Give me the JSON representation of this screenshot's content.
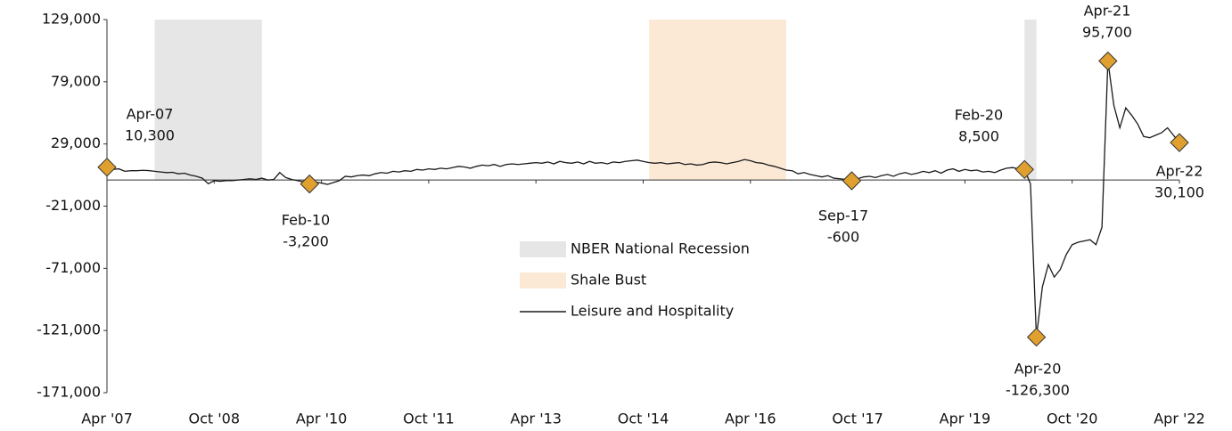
{
  "chart_data": {
    "type": "line",
    "x": [
      "2007-04",
      "2007-05",
      "2007-06",
      "2007-07",
      "2007-08",
      "2007-09",
      "2007-10",
      "2007-11",
      "2007-12",
      "2008-01",
      "2008-02",
      "2008-03",
      "2008-04",
      "2008-05",
      "2008-06",
      "2008-07",
      "2008-08",
      "2008-09",
      "2008-10",
      "2008-11",
      "2008-12",
      "2009-01",
      "2009-02",
      "2009-03",
      "2009-04",
      "2009-05",
      "2009-06",
      "2009-07",
      "2009-08",
      "2009-09",
      "2009-10",
      "2009-11",
      "2009-12",
      "2010-01",
      "2010-02",
      "2010-03",
      "2010-04",
      "2010-05",
      "2010-06",
      "2010-07",
      "2010-08",
      "2010-09",
      "2010-10",
      "2010-11",
      "2010-12",
      "2011-01",
      "2011-02",
      "2011-03",
      "2011-04",
      "2011-05",
      "2011-06",
      "2011-07",
      "2011-08",
      "2011-09",
      "2011-10",
      "2011-11",
      "2011-12",
      "2012-01",
      "2012-02",
      "2012-03",
      "2012-04",
      "2012-05",
      "2012-06",
      "2012-07",
      "2012-08",
      "2012-09",
      "2012-10",
      "2012-11",
      "2012-12",
      "2013-01",
      "2013-02",
      "2013-03",
      "2013-04",
      "2013-05",
      "2013-06",
      "2013-07",
      "2013-08",
      "2013-09",
      "2013-10",
      "2013-11",
      "2013-12",
      "2014-01",
      "2014-02",
      "2014-03",
      "2014-04",
      "2014-05",
      "2014-06",
      "2014-07",
      "2014-08",
      "2014-09",
      "2014-10",
      "2014-11",
      "2014-12",
      "2015-01",
      "2015-02",
      "2015-03",
      "2015-04",
      "2015-05",
      "2015-06",
      "2015-07",
      "2015-08",
      "2015-09",
      "2015-10",
      "2015-11",
      "2015-12",
      "2016-01",
      "2016-02",
      "2016-03",
      "2016-04",
      "2016-05",
      "2016-06",
      "2016-07",
      "2016-08",
      "2016-09",
      "2016-10",
      "2016-11",
      "2016-12",
      "2017-01",
      "2017-02",
      "2017-03",
      "2017-04",
      "2017-05",
      "2017-06",
      "2017-07",
      "2017-08",
      "2017-09",
      "2017-10",
      "2017-11",
      "2017-12",
      "2018-01",
      "2018-02",
      "2018-03",
      "2018-04",
      "2018-05",
      "2018-06",
      "2018-07",
      "2018-08",
      "2018-09",
      "2018-10",
      "2018-11",
      "2018-12",
      "2019-01",
      "2019-02",
      "2019-03",
      "2019-04",
      "2019-05",
      "2019-06",
      "2019-07",
      "2019-08",
      "2019-09",
      "2019-10",
      "2019-11",
      "2019-12",
      "2020-01",
      "2020-02",
      "2020-03",
      "2020-04",
      "2020-05",
      "2020-06",
      "2020-07",
      "2020-08",
      "2020-09",
      "2020-10",
      "2020-11",
      "2020-12",
      "2021-01",
      "2021-02",
      "2021-03",
      "2021-04",
      "2021-05",
      "2021-06",
      "2021-07",
      "2021-08",
      "2021-09",
      "2021-10",
      "2021-11",
      "2021-12",
      "2022-01",
      "2022-02",
      "2022-03",
      "2022-04"
    ],
    "series": [
      {
        "name": "Leisure and Hospitality",
        "color": "#1a1a1a",
        "values": [
          10300,
          8500,
          9000,
          7000,
          7500,
          7500,
          7800,
          7600,
          7000,
          6500,
          6000,
          6200,
          5000,
          5500,
          4000,
          3000,
          1500,
          -3000,
          -500,
          -1000,
          -500,
          -500,
          0,
          500,
          1000,
          500,
          1500,
          0,
          500,
          6000,
          2000,
          500,
          -500,
          -1500,
          -3200,
          -1500,
          -2500,
          -3500,
          -2000,
          -500,
          3000,
          2500,
          3500,
          4000,
          3500,
          5000,
          6000,
          5500,
          7000,
          6500,
          7500,
          7000,
          8500,
          8000,
          9000,
          8500,
          9500,
          9000,
          10000,
          11000,
          10500,
          9500,
          11000,
          12000,
          11500,
          12500,
          11000,
          12500,
          13000,
          12500,
          13000,
          13500,
          14000,
          13500,
          14500,
          13000,
          15000,
          14000,
          13500,
          14500,
          13000,
          15000,
          13500,
          14000,
          13000,
          14500,
          14000,
          15000,
          15500,
          16000,
          15000,
          14000,
          13500,
          14000,
          13000,
          13500,
          14000,
          12500,
          13000,
          12000,
          12500,
          14000,
          14500,
          14000,
          13000,
          14000,
          15000,
          16500,
          15500,
          14000,
          13500,
          12000,
          11000,
          9500,
          8000,
          7500,
          5000,
          6000,
          4500,
          3500,
          2500,
          3500,
          1500,
          1000,
          500,
          -600,
          1000,
          2500,
          3000,
          2000,
          3500,
          4500,
          3000,
          5000,
          6000,
          4500,
          5500,
          7000,
          6000,
          7500,
          5500,
          8000,
          9000,
          7000,
          8500,
          7500,
          8000,
          6500,
          7000,
          6000,
          8000,
          9500,
          10000,
          9000,
          8500,
          -3000,
          -126300,
          -86000,
          -68000,
          -78000,
          -72000,
          -60000,
          -52000,
          -50000,
          -49000,
          -48000,
          -52000,
          -38000,
          95700,
          60000,
          42000,
          58000,
          52000,
          45000,
          35000,
          34000,
          36000,
          38000,
          42000,
          36000,
          30100
        ]
      }
    ],
    "shaded": [
      {
        "name": "NBER National Recession",
        "color": "#e6e6e6",
        "spans": [
          [
            "2007-12",
            "2009-06"
          ],
          [
            "2020-02",
            "2020-04"
          ]
        ]
      },
      {
        "name": "Shale Bust",
        "color": "#fbe9d6",
        "spans": [
          [
            "2014-11",
            "2016-10"
          ]
        ]
      }
    ],
    "annotations": [
      {
        "x": "2007-04",
        "text": "Apr-07",
        "value": 10300,
        "value_label": "10,300"
      },
      {
        "x": "2010-02",
        "text": "Feb-10",
        "value": -3200,
        "value_label": "-3,200"
      },
      {
        "x": "2017-09",
        "text": "Sep-17",
        "value": -600,
        "value_label": "-600"
      },
      {
        "x": "2020-02",
        "text": "Feb-20",
        "value": 8500,
        "value_label": "8,500"
      },
      {
        "x": "2020-04",
        "text": "Apr-20",
        "value": -126300,
        "value_label": "-126,300"
      },
      {
        "x": "2021-04",
        "text": "Apr-21",
        "value": 95700,
        "value_label": "95,700"
      },
      {
        "x": "2022-04",
        "text": "Apr-22",
        "value": 30100,
        "value_label": "30,100"
      }
    ],
    "marker_color": "#e0a030",
    "ylim": [
      -171000,
      129000
    ],
    "yticks": [
      {
        "value": 129000,
        "label": "129,000"
      },
      {
        "value": 79000,
        "label": "79,000"
      },
      {
        "value": 29000,
        "label": "29,000"
      },
      {
        "value": -21000,
        "label": "-21,000"
      },
      {
        "value": -71000,
        "label": "-71,000"
      },
      {
        "value": -121000,
        "label": "-121,000"
      },
      {
        "value": -171000,
        "label": "-171,000"
      }
    ],
    "xticks": [
      {
        "value": "2007-04",
        "label": "Apr '07"
      },
      {
        "value": "2008-10",
        "label": "Oct '08"
      },
      {
        "value": "2010-04",
        "label": "Apr '10"
      },
      {
        "value": "2011-10",
        "label": "Oct '11"
      },
      {
        "value": "2013-04",
        "label": "Apr '13"
      },
      {
        "value": "2014-10",
        "label": "Oct '14"
      },
      {
        "value": "2016-04",
        "label": "Apr '16"
      },
      {
        "value": "2017-10",
        "label": "Oct '17"
      },
      {
        "value": "2019-04",
        "label": "Apr '19"
      },
      {
        "value": "2020-10",
        "label": "Oct '20"
      },
      {
        "value": "2022-04",
        "label": "Apr '22"
      }
    ],
    "grid": false
  }
}
